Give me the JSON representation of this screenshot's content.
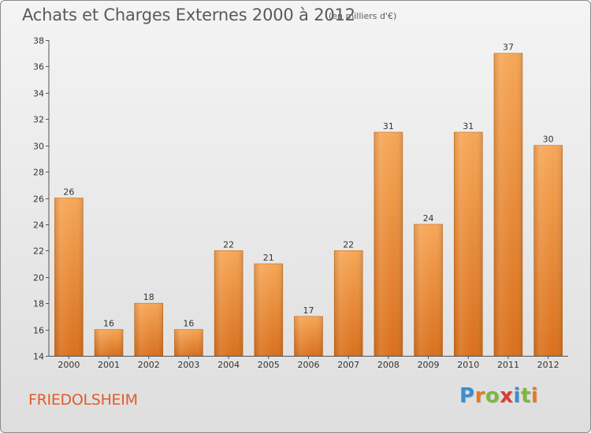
{
  "header": {
    "title": "Achats et Charges Externes 2000 à 2012",
    "subtitle": "(en milliers d'€)"
  },
  "footer": {
    "commune": "FRIEDOLSHEIM",
    "logo_letters": [
      "P",
      "r",
      "o",
      "x",
      "i",
      "t",
      "i"
    ]
  },
  "colors": {
    "bar_top": "#f6a656",
    "bar_bottom": "#d9701c",
    "commune_text": "#dd5d2a",
    "logo": [
      "#3a8fd0",
      "#e8781f",
      "#7cb83a",
      "#e03a2f",
      "#3a8fd0",
      "#7cb83a",
      "#e8781f"
    ]
  },
  "chart_data": {
    "type": "bar",
    "title": "Achats et Charges Externes 2000 à 2012",
    "categories": [
      "2000",
      "2001",
      "2002",
      "2003",
      "2004",
      "2005",
      "2006",
      "2007",
      "2008",
      "2009",
      "2010",
      "2011",
      "2012"
    ],
    "values": [
      26,
      16,
      18,
      16,
      22,
      21,
      17,
      22,
      31,
      24,
      31,
      37,
      30
    ],
    "ylim": [
      14,
      38
    ],
    "yticks": [
      14,
      16,
      18,
      20,
      22,
      24,
      26,
      28,
      30,
      32,
      34,
      36,
      38
    ],
    "grid": false,
    "data_labels": true
  }
}
